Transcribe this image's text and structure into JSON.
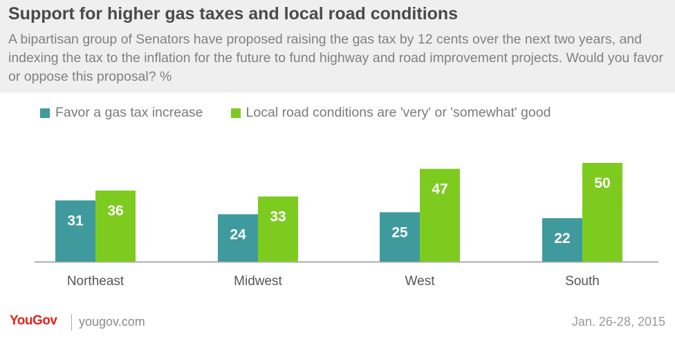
{
  "title": "Support for higher gas taxes and local road conditions",
  "subtitle": "A bipartisan group of Senators have proposed raising the gas tax by 12 cents over the next two years, and indexing the tax to the inflation for the future to fund highway and road improvement projects. Would you favor or oppose this proposal? %",
  "colors": {
    "favor": "#3f9a9d",
    "roads": "#7ecb20",
    "axis": "#aaaaaa"
  },
  "chart_data": {
    "type": "bar",
    "categories": [
      "Northeast",
      "Midwest",
      "West",
      "South"
    ],
    "series": [
      {
        "name": "Favor a gas tax increase",
        "values": [
          31,
          24,
          25,
          22
        ]
      },
      {
        "name": "Local road conditions are 'very' or 'somewhat' good",
        "values": [
          36,
          33,
          47,
          50
        ]
      }
    ],
    "ylim": [
      0,
      50
    ],
    "grid": false,
    "legend_position": "top"
  },
  "footer": {
    "brand": "YouGov",
    "site": "yougov.com",
    "date": "Jan. 26-28, 2015"
  }
}
